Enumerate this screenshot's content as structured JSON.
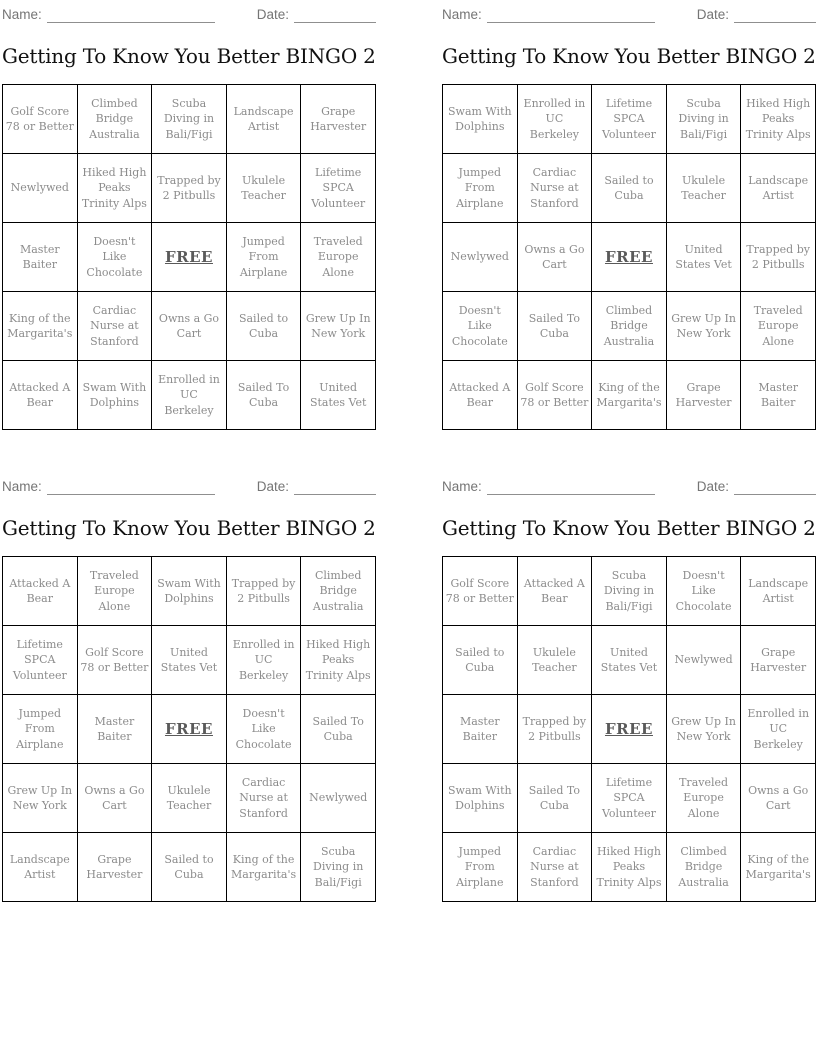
{
  "labels": {
    "name": "Name:",
    "date": "Date:"
  },
  "colors": {
    "page_bg": "#ffffff",
    "header_label": "#757575",
    "blank_line": "#8f8f8f",
    "title": "#111111",
    "grid_border": "#000000",
    "cell_text": "#8c8c8c",
    "free_text": "#5a5a5a"
  },
  "free_cell_index": 12,
  "cards": [
    {
      "title": "Getting To Know You Better BINGO 2",
      "cells": [
        "Golf Score 78 or Better",
        "Climbed Bridge Australia",
        "Scuba Diving in Bali/Figi",
        "Landscape Artist",
        "Grape Harvester",
        "Newlywed",
        "Hiked High Peaks Trinity Alps",
        "Trapped by 2 Pitbulls",
        "Ukulele Teacher",
        "Lifetime SPCA Volunteer",
        "Master Baiter",
        "Doesn't Like Chocolate",
        "FREE",
        "Jumped From Airplane",
        "Traveled Europe Alone",
        "King of the Margarita's",
        "Cardiac Nurse at Stanford",
        "Owns a Go Cart",
        "Sailed to Cuba",
        "Grew Up In New York",
        "Attacked A Bear",
        "Swam With Dolphins",
        "Enrolled in UC Berkeley",
        "Sailed To Cuba",
        "United States Vet"
      ]
    },
    {
      "title": "Getting To Know You Better BINGO 2",
      "cells": [
        "Swam With Dolphins",
        "Enrolled in UC Berkeley",
        "Lifetime SPCA Volunteer",
        "Scuba Diving in Bali/Figi",
        "Hiked High Peaks Trinity Alps",
        "Jumped From Airplane",
        "Cardiac Nurse at Stanford",
        "Sailed to Cuba",
        "Ukulele Teacher",
        "Landscape Artist",
        "Newlywed",
        "Owns a Go Cart",
        "FREE",
        "United States Vet",
        "Trapped by 2 Pitbulls",
        "Doesn't Like Chocolate",
        "Sailed To Cuba",
        "Climbed Bridge Australia",
        "Grew Up In New York",
        "Traveled Europe Alone",
        "Attacked A Bear",
        "Golf Score 78 or Better",
        "King of the Margarita's",
        "Grape Harvester",
        "Master Baiter"
      ]
    },
    {
      "title": "Getting To Know You Better BINGO 2",
      "cells": [
        "Attacked A Bear",
        "Traveled Europe Alone",
        "Swam With Dolphins",
        "Trapped by 2 Pitbulls",
        "Climbed Bridge Australia",
        "Lifetime SPCA Volunteer",
        "Golf Score 78 or Better",
        "United States Vet",
        "Enrolled in UC Berkeley",
        "Hiked High Peaks Trinity Alps",
        "Jumped From Airplane",
        "Master Baiter",
        "FREE",
        "Doesn't Like Chocolate",
        "Sailed To Cuba",
        "Grew Up In New York",
        "Owns a Go Cart",
        "Ukulele Teacher",
        "Cardiac Nurse at Stanford",
        "Newlywed",
        "Landscape Artist",
        "Grape Harvester",
        "Sailed to Cuba",
        "King of the Margarita's",
        "Scuba Diving in Bali/Figi"
      ]
    },
    {
      "title": "Getting To Know You Better BINGO 2",
      "cells": [
        "Golf Score 78 or Better",
        "Attacked A Bear",
        "Scuba Diving in Bali/Figi",
        "Doesn't Like Chocolate",
        "Landscape Artist",
        "Sailed to Cuba",
        "Ukulele Teacher",
        "United States Vet",
        "Newlywed",
        "Grape Harvester",
        "Master Baiter",
        "Trapped by 2 Pitbulls",
        "FREE",
        "Grew Up In New York",
        "Enrolled in UC Berkeley",
        "Swam With Dolphins",
        "Sailed To Cuba",
        "Lifetime SPCA Volunteer",
        "Traveled Europe Alone",
        "Owns a Go Cart",
        "Jumped From Airplane",
        "Cardiac Nurse at Stanford",
        "Hiked High Peaks Trinity Alps",
        "Climbed Bridge Australia",
        "King of the Margarita's"
      ]
    }
  ]
}
